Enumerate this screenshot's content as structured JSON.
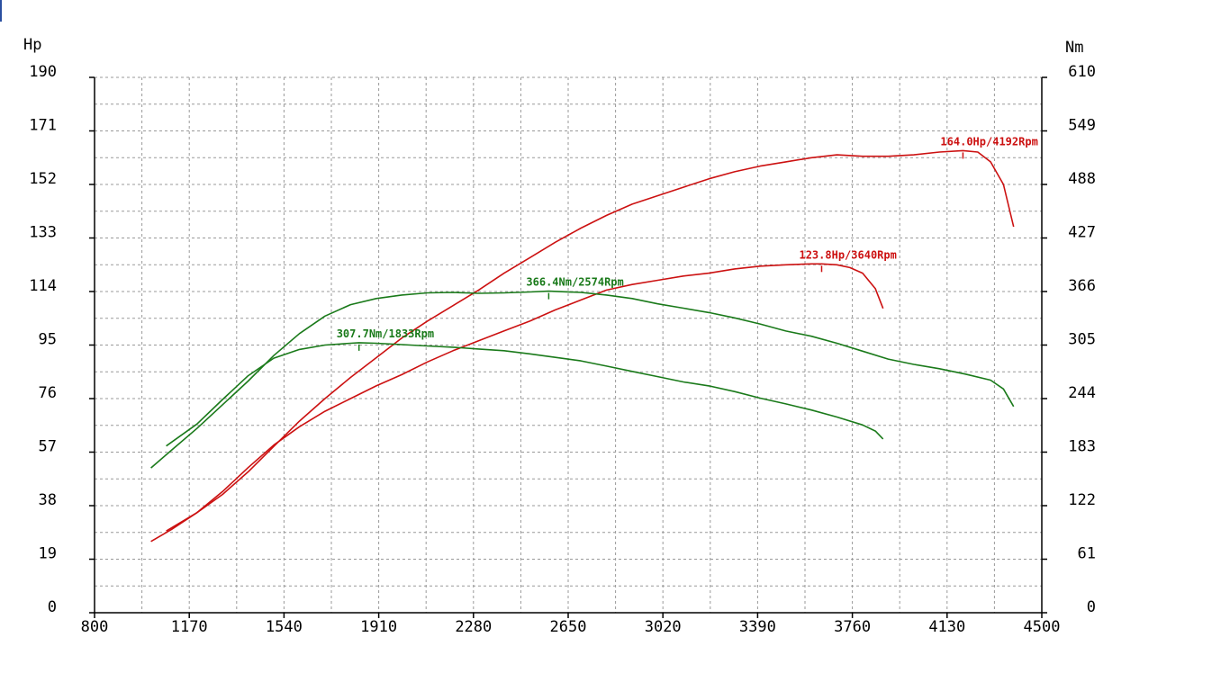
{
  "chart_data": {
    "type": "line",
    "title": "",
    "x_ticks": [
      "800",
      "1170",
      "1540",
      "1910",
      "2280",
      "2650",
      "3020",
      "3390",
      "3760",
      "4130",
      "4500"
    ],
    "xlim": [
      800,
      4500
    ],
    "y_left": {
      "label": "Hp",
      "ticks": [
        "0",
        "19",
        "38",
        "57",
        "76",
        "95",
        "114",
        "133",
        "152",
        "171",
        "190"
      ],
      "ylim": [
        0,
        190
      ]
    },
    "y_right": {
      "label": "Nm",
      "ticks": [
        "0",
        "61",
        "122",
        "183",
        "244",
        "305",
        "366",
        "427",
        "488",
        "549",
        "610"
      ],
      "ylim": [
        0,
        610
      ]
    },
    "grid": true,
    "colors": {
      "power": "#cc1111",
      "torque": "#1a7a1a",
      "grid": "#999999",
      "axis": "#000000"
    },
    "series": [
      {
        "kind": "power",
        "axis": "left",
        "color": "#cc1111",
        "x": [
          1020,
          1100,
          1200,
          1300,
          1400,
          1500,
          1600,
          1700,
          1800,
          1900,
          2000,
          2100,
          2200,
          2300,
          2400,
          2500,
          2600,
          2700,
          2800,
          2900,
          3000,
          3100,
          3200,
          3300,
          3400,
          3500,
          3600,
          3700,
          3800,
          3900,
          4000,
          4100,
          4192,
          4250,
          4300,
          4350,
          4390
        ],
        "y": [
          25.3,
          29.5,
          35.5,
          42.0,
          50.0,
          59.0,
          68.0,
          76.0,
          83.5,
          90.5,
          97.5,
          103.5,
          109.0,
          114.5,
          120.5,
          126.0,
          131.5,
          136.5,
          141.0,
          145.0,
          148.0,
          151.0,
          154.0,
          156.5,
          158.5,
          160.0,
          161.5,
          162.5,
          162.0,
          162.0,
          162.5,
          163.5,
          164.0,
          163.5,
          160.0,
          152.0,
          137.0
        ]
      },
      {
        "kind": "power",
        "axis": "left",
        "color": "#cc1111",
        "x": [
          1080,
          1200,
          1300,
          1400,
          1500,
          1600,
          1700,
          1800,
          1900,
          2000,
          2100,
          2200,
          2300,
          2400,
          2500,
          2600,
          2700,
          2800,
          2900,
          3000,
          3100,
          3200,
          3300,
          3400,
          3500,
          3600,
          3640,
          3700,
          3750,
          3800,
          3850,
          3880
        ],
        "y": [
          29.0,
          35.5,
          43.0,
          51.5,
          59.5,
          66.0,
          71.5,
          76.0,
          80.5,
          84.5,
          89.0,
          93.0,
          96.5,
          100.0,
          103.5,
          107.5,
          111.0,
          114.5,
          116.5,
          118.0,
          119.5,
          120.5,
          122.0,
          123.0,
          123.5,
          123.8,
          123.8,
          123.5,
          122.5,
          120.5,
          115.0,
          108.0
        ]
      },
      {
        "kind": "torque",
        "axis": "right",
        "color": "#1a7a1a",
        "x": [
          1020,
          1100,
          1200,
          1300,
          1400,
          1500,
          1600,
          1700,
          1800,
          1900,
          2000,
          2100,
          2200,
          2300,
          2400,
          2500,
          2574,
          2700,
          2800,
          2900,
          3000,
          3100,
          3200,
          3300,
          3400,
          3500,
          3600,
          3700,
          3800,
          3900,
          4000,
          4100,
          4200,
          4300,
          4350,
          4390
        ],
        "y": [
          165.0,
          185.0,
          210.0,
          237.0,
          264.0,
          293.0,
          318.0,
          338.0,
          351.0,
          358.0,
          362.0,
          364.5,
          365.0,
          364.0,
          364.5,
          365.5,
          366.4,
          365.0,
          362.0,
          358.0,
          352.0,
          347.0,
          342.0,
          336.0,
          329.0,
          321.0,
          315.0,
          307.0,
          298.0,
          289.0,
          283.0,
          278.0,
          272.0,
          265.0,
          255.0,
          235.0
        ]
      },
      {
        "kind": "torque",
        "axis": "right",
        "color": "#1a7a1a",
        "x": [
          1080,
          1200,
          1300,
          1400,
          1500,
          1600,
          1700,
          1800,
          1833,
          1900,
          2000,
          2100,
          2200,
          2300,
          2400,
          2500,
          2600,
          2700,
          2800,
          2900,
          3000,
          3100,
          3200,
          3300,
          3400,
          3500,
          3600,
          3700,
          3800,
          3850,
          3880
        ],
        "y": [
          190.0,
          215.0,
          243.0,
          270.0,
          290.0,
          300.0,
          305.0,
          307.0,
          307.7,
          307.0,
          305.5,
          304.0,
          302.5,
          300.5,
          298.5,
          295.0,
          291.0,
          287.0,
          281.0,
          275.0,
          269.0,
          263.0,
          258.5,
          252.0,
          244.5,
          238.0,
          231.0,
          223.0,
          214.0,
          207.0,
          198.0
        ]
      }
    ],
    "annotations": [
      {
        "text": "164.0Hp/4192Rpm",
        "x": 4192,
        "y": 164.0,
        "axis": "left",
        "color": "#cc1111"
      },
      {
        "text": "123.8Hp/3640Rpm",
        "x": 3640,
        "y": 123.8,
        "axis": "left",
        "color": "#cc1111"
      },
      {
        "text": "366.4Nm/2574Rpm",
        "x": 2574,
        "y": 366.4,
        "axis": "right",
        "color": "#1a7a1a"
      },
      {
        "text": "307.7Nm/1833Rpm",
        "x": 1833,
        "y": 307.7,
        "axis": "right",
        "color": "#1a7a1a"
      }
    ]
  }
}
